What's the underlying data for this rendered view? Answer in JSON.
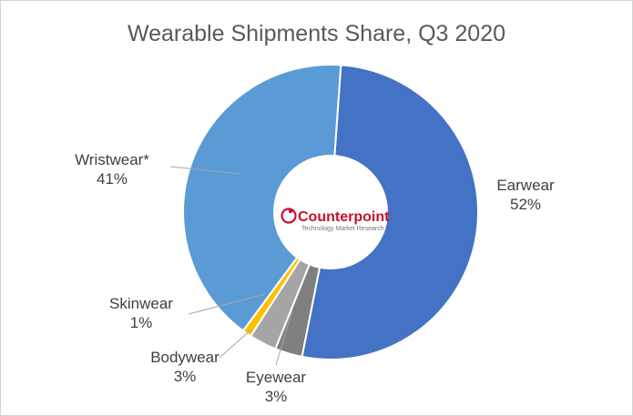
{
  "chart_data": {
    "type": "pie",
    "title": "Wearable Shipments Share, Q3 2020",
    "categories": [
      "Earwear",
      "Eyewear",
      "Bodywear",
      "Skinwear",
      "Wristwear*"
    ],
    "values": [
      52,
      3,
      3,
      1,
      41
    ],
    "value_labels": [
      "52%",
      "3%",
      "3%",
      "1%",
      "41%"
    ],
    "colors": [
      "#4472c4",
      "#7f7f7f",
      "#a5a5a5",
      "#ffc000",
      "#5b9bd5"
    ],
    "start_angle_deg": 4,
    "direction": "clockwise",
    "donut_hole": true,
    "legend": "none"
  },
  "logo": {
    "name": "Counterpoint",
    "tagline": "Technology Market Research",
    "color": "#c8102e"
  }
}
